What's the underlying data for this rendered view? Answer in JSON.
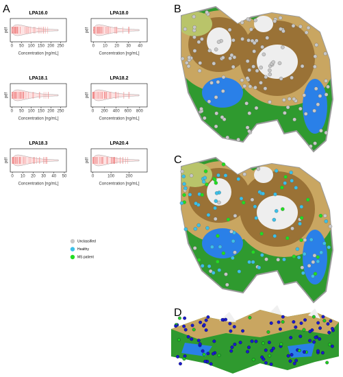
{
  "panels": [
    "A",
    "B",
    "C",
    "D"
  ],
  "legend": {
    "items": [
      {
        "name": "Unclassified",
        "color": "#c8c8c8"
      },
      {
        "name": "Healthy",
        "color": "#3cc0e8"
      },
      {
        "name": "MS patient",
        "color": "#22dd22"
      }
    ]
  },
  "chart_data": [
    {
      "type": "violin",
      "title": "LPA16.0",
      "xlabel": "Concentration [ng/mL]",
      "ylabel": "pdf",
      "color": "#f08080",
      "xlim": [
        -8,
        280
      ],
      "xticks": [
        0,
        50,
        100,
        150,
        200,
        250
      ]
    },
    {
      "type": "violin",
      "title": "LPA18.0",
      "xlabel": "Concentration [ng/mL]",
      "ylabel": "pdf",
      "color": "#f08080",
      "xlim": [
        -2,
        46
      ],
      "xticks": [
        0,
        10,
        20,
        30,
        40
      ]
    },
    {
      "type": "violin",
      "title": "LPA18.1",
      "xlabel": "Concentration [ng/mL]",
      "ylabel": "pdf",
      "color": "#f08080",
      "xlim": [
        -8,
        280
      ],
      "xticks": [
        0,
        50,
        100,
        150,
        200,
        250
      ]
    },
    {
      "type": "violin",
      "title": "LPA18.2",
      "xlabel": "Concentration [ng/mL]",
      "ylabel": "pdf",
      "color": "#f08080",
      "xlim": [
        -30,
        930
      ],
      "xticks": [
        0,
        200,
        400,
        600,
        800
      ]
    },
    {
      "type": "violin",
      "title": "LPA18.3",
      "xlabel": "Concentration [ng/mL]",
      "ylabel": "pdf",
      "color": "#f08080",
      "xlim": [
        -2,
        52
      ],
      "xticks": [
        0,
        10,
        20,
        30,
        40,
        50
      ]
    },
    {
      "type": "violin",
      "title": "LPA20.4",
      "xlabel": "Concentration [ng/mL]",
      "ylabel": "pdf",
      "color": "#f08080",
      "xlim": [
        -10,
        300
      ],
      "xticks": [
        0,
        100,
        200
      ]
    }
  ]
}
